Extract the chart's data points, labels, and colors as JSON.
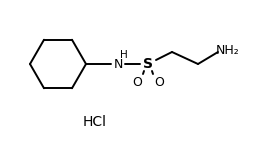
{
  "bg_color": "#ffffff",
  "line_color": "#000000",
  "text_color": "#000000",
  "hcl_label": "HCl",
  "nh_label": "H",
  "n_label": "N",
  "s_label": "S",
  "o1_label": "O",
  "o2_label": "O",
  "nh2_label": "NH₂",
  "figsize": [
    2.7,
    1.44
  ],
  "dpi": 100,
  "lw": 1.4,
  "fs": 9,
  "fs_small": 7.5
}
